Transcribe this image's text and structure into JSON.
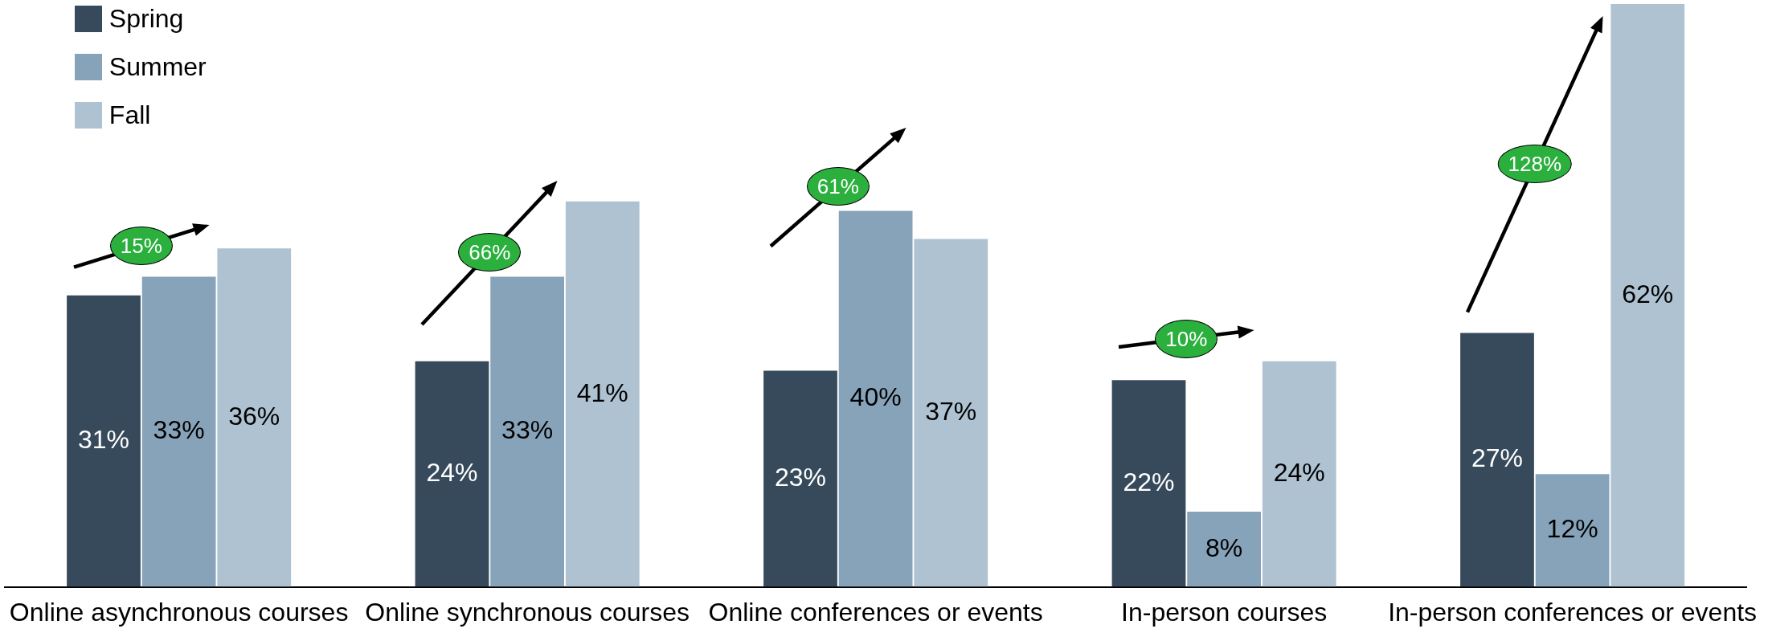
{
  "chart_data": {
    "type": "bar",
    "categories": [
      "Online asynchronous courses",
      "Online synchronous courses",
      "Online conferences or events",
      "In-person courses",
      "In-person conferences or events"
    ],
    "series": [
      {
        "name": "Spring",
        "color": "#364a5c",
        "values": [
          31,
          24,
          23,
          22,
          27
        ],
        "value_labels": [
          "31%",
          "24%",
          "23%",
          "22%",
          "27%"
        ]
      },
      {
        "name": "Summer",
        "color": "#87a3b9",
        "values": [
          33,
          33,
          40,
          8,
          12
        ],
        "value_labels": [
          "33%",
          "33%",
          "40%",
          "8%",
          "12%"
        ]
      },
      {
        "name": "Fall",
        "color": "#aec2d2",
        "values": [
          36,
          41,
          37,
          24,
          62
        ],
        "value_labels": [
          "36%",
          "41%",
          "37%",
          "24%",
          "62%"
        ]
      }
    ],
    "annotations": [
      "15%",
      "66%",
      "61%",
      "10%",
      "128%"
    ],
    "legend": "top left",
    "tick_labels": "x"
  }
}
